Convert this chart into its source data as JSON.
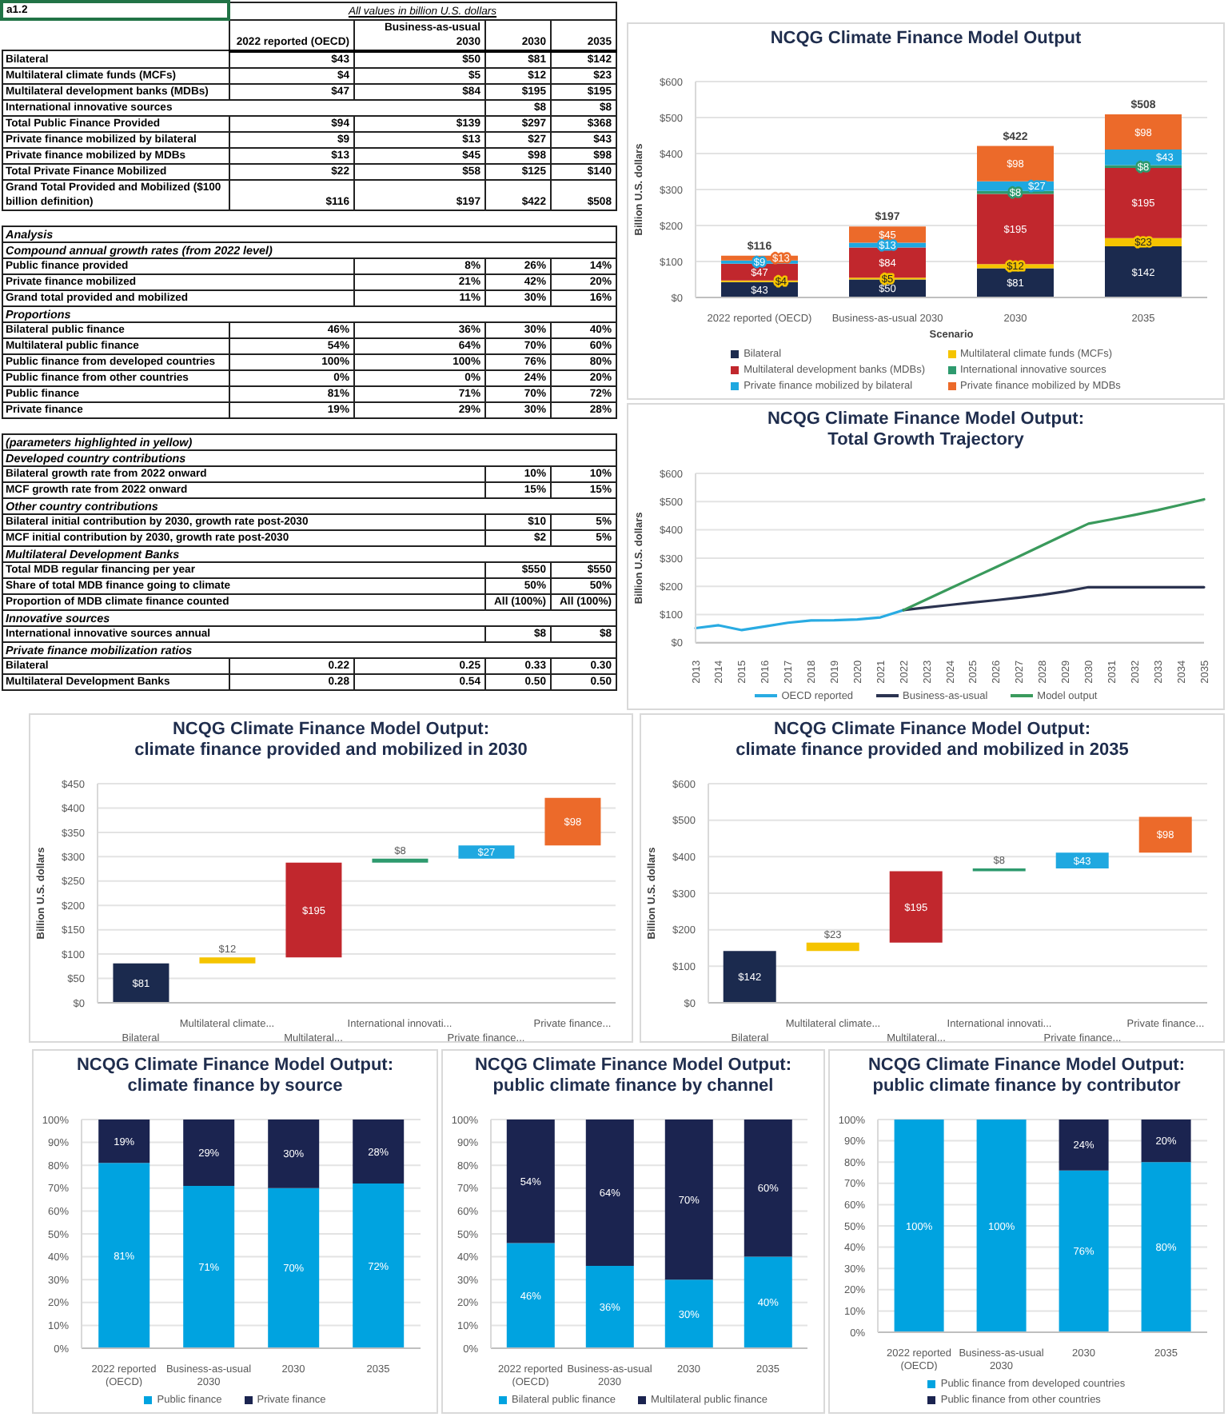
{
  "chart_data": [
    {
      "type": "other",
      "title": "All values in billion U.S. dollars",
      "annotations": [
        "a1.2"
      ],
      "categories": [
        "2022 reported (OECD)",
        "Business-as-usual 2030",
        "2030",
        "2035"
      ],
      "y_categories": [
        "Bilateral",
        "Multilateral climate funds (MCFs)",
        "Multilateral development banks (MDBs)",
        "International innovative sources",
        "Total Public Finance Provided",
        "Private finance mobilized by bilateral",
        "Private finance mobilized by MDBs",
        "Total Private Finance Mobilized",
        "Grand Total Provided and Mobilized ($100 billion definition)",
        null,
        "Analysis",
        "Compound annual growth rates (from 2022 level)",
        "Public finance provided",
        "Private finance mobilized",
        "Grand total provided and mobilized",
        "Proportions",
        "Bilateral public finance",
        "Multilateral public finance",
        "Public finance from developed countries",
        "Public finance from other countries",
        "Public finance",
        "Private finance",
        null,
        "(parameters highlighted in yellow)",
        "Developed country contributions",
        "Bilateral growth rate from 2022 onward",
        "MCF growth rate from 2022 onward",
        "Other country contributions",
        "Bilateral initial contribution by 2030, growth rate post-2030",
        "MCF initial contribution by 2030, growth rate post-2030",
        "Multilateral Development Banks",
        "Total MDB regular financing per year",
        "Share of total MDB finance going to climate",
        "Proportion of MDB climate finance counted",
        "Innovative sources",
        "International innovative sources annual",
        "Private finance mobilization ratios",
        "Bilateral",
        "Multilateral Development Banks"
      ],
      "cell_labels": [
        [
          "$43",
          "$50",
          "$81",
          "$142"
        ],
        [
          "$4",
          "$5",
          "$12",
          "$23"
        ],
        [
          "$47",
          "$84",
          "$195",
          "$195"
        ],
        [
          null,
          null,
          "$8",
          "$8"
        ],
        [
          "$94",
          "$139",
          "$297",
          "$368"
        ],
        [
          "$9",
          "$13",
          "$27",
          "$43"
        ],
        [
          "$13",
          "$45",
          "$98",
          "$98"
        ],
        [
          "$22",
          "$58",
          "$125",
          "$140"
        ],
        [
          "$116",
          "$197",
          "$422",
          "$508"
        ],
        [
          null,
          null,
          null,
          null
        ],
        [
          null,
          null,
          null,
          null
        ],
        [
          null,
          null,
          null,
          null
        ],
        [
          null,
          "8%",
          "26%",
          "14%"
        ],
        [
          null,
          "21%",
          "42%",
          "20%"
        ],
        [
          null,
          "11%",
          "30%",
          "16%"
        ],
        [
          null,
          null,
          null,
          null
        ],
        [
          "46%",
          "36%",
          "30%",
          "40%"
        ],
        [
          "54%",
          "64%",
          "70%",
          "60%"
        ],
        [
          "100%",
          "100%",
          "76%",
          "80%"
        ],
        [
          "0%",
          "0%",
          "24%",
          "20%"
        ],
        [
          "81%",
          "71%",
          "70%",
          "72%"
        ],
        [
          "19%",
          "29%",
          "30%",
          "28%"
        ],
        [
          null,
          null,
          null,
          null
        ],
        [
          null,
          null,
          null,
          null
        ],
        [
          null,
          null,
          null,
          null
        ],
        [
          null,
          null,
          "10%",
          "10%"
        ],
        [
          null,
          null,
          "15%",
          "15%"
        ],
        [
          null,
          null,
          null,
          null
        ],
        [
          null,
          null,
          "$10",
          "5%"
        ],
        [
          null,
          null,
          "$2",
          "5%"
        ],
        [
          null,
          null,
          null,
          null
        ],
        [
          null,
          null,
          "$550",
          "$550"
        ],
        [
          null,
          null,
          "50%",
          "50%"
        ],
        [
          null,
          null,
          "All (100%)",
          "All (100%)"
        ],
        [
          null,
          null,
          null,
          null
        ],
        [
          null,
          null,
          "$8",
          "$8"
        ],
        [
          null,
          null,
          null,
          null
        ],
        [
          "0.22",
          "0.25",
          "0.33",
          "0.30"
        ],
        [
          "0.28",
          "0.54",
          "0.50",
          "0.50"
        ]
      ]
    },
    {
      "type": "bar",
      "title": "NCQG Climate Finance Model Output",
      "xlabel": "Scenario",
      "ylabel": "Billion U.S. dollars",
      "categories": [
        "2022 reported (OECD)",
        "Business-as-usual 2030",
        "2030",
        "2035"
      ],
      "stacked": true,
      "series": [
        {
          "name": "Bilateral",
          "color": "#1b2a4e",
          "values": [
            43,
            50,
            81,
            142
          ],
          "value_labels": [
            "$43",
            "$50",
            "$81",
            "$142"
          ]
        },
        {
          "name": "Multilateral climate funds (MCFs)",
          "color": "#f5c400",
          "values": [
            4,
            5,
            12,
            23
          ],
          "value_labels": [
            "$4",
            "$5",
            "$12",
            "$23"
          ]
        },
        {
          "name": "Multilateral development banks (MDBs)",
          "color": "#c1272d",
          "values": [
            47,
            84,
            195,
            195
          ],
          "value_labels": [
            "$47",
            "$84",
            "$195",
            "$195"
          ]
        },
        {
          "name": "International innovative sources",
          "color": "#2e9a6e",
          "values": [
            null,
            null,
            8,
            8
          ],
          "value_labels": [
            null,
            null,
            "$8",
            "$8"
          ]
        },
        {
          "name": "Private finance mobilized by bilateral",
          "color": "#1fa8e0",
          "values": [
            9,
            13,
            27,
            43
          ],
          "value_labels": [
            "$9",
            "$13",
            "$27",
            "$43"
          ]
        },
        {
          "name": "Private finance mobilized by MDBs",
          "color": "#ec6a2a",
          "values": [
            13,
            45,
            98,
            98
          ],
          "value_labels": [
            "$13",
            "$45",
            "$98",
            "$98"
          ]
        }
      ],
      "totals": [
        "$116",
        "$197",
        "$422",
        "$508"
      ],
      "ylim": [
        0,
        600
      ],
      "yticks": [
        {
          "value": 0,
          "label": "$0"
        },
        {
          "value": 100,
          "label": "$100"
        },
        {
          "value": 200,
          "label": "$200"
        },
        {
          "value": 300,
          "label": "$300"
        },
        {
          "value": 400,
          "label": "$400"
        },
        {
          "value": 500,
          "label": "$500"
        },
        {
          "value": 600,
          "label": "$600"
        }
      ],
      "grid": "y",
      "legend": "bottom"
    },
    {
      "type": "line",
      "title": "NCQG Climate Finance Model Output:\nTotal Growth Trajectory",
      "ylabel": "Billion U.S. dollars",
      "categories": [
        "2013",
        "2014",
        "2015",
        "2016",
        "2017",
        "2018",
        "2019",
        "2020",
        "2021",
        "2022",
        "2023",
        "2024",
        "2025",
        "2026",
        "2027",
        "2028",
        "2029",
        "2030",
        "2031",
        "2032",
        "2033",
        "2034",
        "2035"
      ],
      "series": [
        {
          "name": "OECD reported",
          "color": "#29abe2",
          "values": [
            52,
            62,
            45,
            58,
            71,
            79,
            80,
            83,
            90,
            116,
            null,
            null,
            null,
            null,
            null,
            null,
            null,
            null,
            null,
            null,
            null,
            null,
            null
          ]
        },
        {
          "name": "Business-as-usual",
          "color": "#2b3350",
          "values": [
            null,
            null,
            null,
            null,
            null,
            null,
            null,
            null,
            null,
            116,
            125,
            134,
            143,
            151,
            160,
            170,
            182,
            197,
            197,
            197,
            197,
            197,
            197
          ]
        },
        {
          "name": "Model output",
          "color": "#3a9a5c",
          "values": [
            null,
            null,
            null,
            null,
            null,
            null,
            null,
            null,
            null,
            116,
            154,
            192,
            230,
            268,
            306,
            345,
            384,
            422,
            437,
            453,
            470,
            489,
            508
          ]
        }
      ],
      "ylim": [
        0,
        600
      ],
      "yticks": [
        {
          "value": 0,
          "label": "$0"
        },
        {
          "value": 100,
          "label": "$100"
        },
        {
          "value": 200,
          "label": "$200"
        },
        {
          "value": 300,
          "label": "$300"
        },
        {
          "value": 400,
          "label": "$400"
        },
        {
          "value": 500,
          "label": "$500"
        },
        {
          "value": 600,
          "label": "$600"
        }
      ],
      "grid": "y",
      "legend": "bottom",
      "marker": "none"
    },
    {
      "type": "bar",
      "title": "NCQG Climate Finance Model Output:\nclimate finance provided and mobilized in 2030",
      "ylabel": "Billion U.S. dollars",
      "categories": [
        "Bilateral",
        "Multilateral climate...",
        "Multilateral...",
        "International innovati...",
        "Private finance...",
        "Private finance..."
      ],
      "values": [
        81,
        12,
        195,
        8,
        27,
        98
      ],
      "base": [
        0,
        81,
        93,
        288,
        296,
        323
      ],
      "colors": [
        "#1b2a4e",
        "#f5c400",
        "#c1272d",
        "#2e9a6e",
        "#1fa8e0",
        "#ec6a2a"
      ],
      "value_labels": [
        "$81",
        "$12",
        "$195",
        "$8",
        "$27",
        "$98"
      ],
      "ylim": [
        0,
        450
      ],
      "yticks": [
        {
          "value": 0,
          "label": "$0"
        },
        {
          "value": 50,
          "label": "$50"
        },
        {
          "value": 100,
          "label": "$100"
        },
        {
          "value": 150,
          "label": "$150"
        },
        {
          "value": 200,
          "label": "$200"
        },
        {
          "value": 250,
          "label": "$250"
        },
        {
          "value": 300,
          "label": "$300"
        },
        {
          "value": 350,
          "label": "$350"
        },
        {
          "value": 400,
          "label": "$400"
        },
        {
          "value": 450,
          "label": "$450"
        }
      ],
      "grid": "y"
    },
    {
      "type": "bar",
      "title": "NCQG Climate Finance Model Output:\nclimate finance provided and mobilized in 2035",
      "ylabel": "Billion U.S. dollars",
      "categories": [
        "Bilateral",
        "Multilateral climate...",
        "Multilateral...",
        "International innovati...",
        "Private finance...",
        "Private finance..."
      ],
      "values": [
        142,
        23,
        195,
        8,
        43,
        98
      ],
      "base": [
        0,
        142,
        165,
        360,
        368,
        411
      ],
      "colors": [
        "#1b2a4e",
        "#f5c400",
        "#c1272d",
        "#2e9a6e",
        "#1fa8e0",
        "#ec6a2a"
      ],
      "value_labels": [
        "$142",
        "$23",
        "$195",
        "$8",
        "$43",
        "$98"
      ],
      "ylim": [
        0,
        600
      ],
      "yticks": [
        {
          "value": 0,
          "label": "$0"
        },
        {
          "value": 100,
          "label": "$100"
        },
        {
          "value": 200,
          "label": "$200"
        },
        {
          "value": 300,
          "label": "$300"
        },
        {
          "value": 400,
          "label": "$400"
        },
        {
          "value": 500,
          "label": "$500"
        },
        {
          "value": 600,
          "label": "$600"
        }
      ],
      "grid": "y"
    },
    {
      "type": "bar",
      "title": "NCQG Climate Finance Model Output:\nclimate finance by source",
      "categories": [
        "2022 reported (OECD)",
        "Business-as-usual 2030",
        "2030",
        "2035"
      ],
      "stacked": true,
      "series": [
        {
          "name": "Public finance",
          "color": "#00a3e0",
          "values": [
            81,
            71,
            70,
            72
          ],
          "value_labels": [
            "81%",
            "71%",
            "70%",
            "72%"
          ]
        },
        {
          "name": "Private finance",
          "color": "#1b2450",
          "values": [
            19,
            29,
            30,
            28
          ],
          "value_labels": [
            "19%",
            "29%",
            "30%",
            "28%"
          ]
        }
      ],
      "ylim": [
        0,
        100
      ],
      "yticks": [
        {
          "value": 0,
          "label": "0%"
        },
        {
          "value": 10,
          "label": "10%"
        },
        {
          "value": 20,
          "label": "20%"
        },
        {
          "value": 30,
          "label": "30%"
        },
        {
          "value": 40,
          "label": "40%"
        },
        {
          "value": 50,
          "label": "50%"
        },
        {
          "value": 60,
          "label": "60%"
        },
        {
          "value": 70,
          "label": "70%"
        },
        {
          "value": 80,
          "label": "80%"
        },
        {
          "value": 90,
          "label": "90%"
        },
        {
          "value": 100,
          "label": "100%"
        }
      ],
      "grid": "y",
      "legend": "bottom"
    },
    {
      "type": "bar",
      "title": "NCQG Climate Finance Model Output:\npublic climate finance by channel",
      "categories": [
        "2022 reported (OECD)",
        "Business-as-usual 2030",
        "2030",
        "2035"
      ],
      "stacked": true,
      "series": [
        {
          "name": "Bilateral public finance",
          "color": "#00a3e0",
          "values": [
            46,
            36,
            30,
            40
          ],
          "value_labels": [
            "46%",
            "36%",
            "30%",
            "40%"
          ]
        },
        {
          "name": "Multilateral public finance",
          "color": "#1b2450",
          "values": [
            54,
            64,
            70,
            60
          ],
          "value_labels": [
            "54%",
            "64%",
            "70%",
            "60%"
          ]
        }
      ],
      "ylim": [
        0,
        100
      ],
      "yticks": [
        {
          "value": 0,
          "label": "0%"
        },
        {
          "value": 10,
          "label": "10%"
        },
        {
          "value": 20,
          "label": "20%"
        },
        {
          "value": 30,
          "label": "30%"
        },
        {
          "value": 40,
          "label": "40%"
        },
        {
          "value": 50,
          "label": "50%"
        },
        {
          "value": 60,
          "label": "60%"
        },
        {
          "value": 70,
          "label": "70%"
        },
        {
          "value": 80,
          "label": "80%"
        },
        {
          "value": 90,
          "label": "90%"
        },
        {
          "value": 100,
          "label": "100%"
        }
      ],
      "grid": "y",
      "legend": "bottom"
    },
    {
      "type": "bar",
      "title": "NCQG Climate Finance Model Output:\npublic climate finance by contributor",
      "categories": [
        "2022 reported (OECD)",
        "Business-as-usual 2030",
        "2030",
        "2035"
      ],
      "stacked": true,
      "series": [
        {
          "name": "Public finance from developed countries",
          "color": "#00a3e0",
          "values": [
            100,
            100,
            76,
            80
          ],
          "value_labels": [
            "100%",
            "100%",
            "76%",
            "80%"
          ]
        },
        {
          "name": "Public finance from other countries",
          "color": "#1b2450",
          "values": [
            0,
            0,
            24,
            20
          ],
          "value_labels": [
            null,
            null,
            "24%",
            "20%"
          ]
        }
      ],
      "ylim": [
        0,
        100
      ],
      "yticks": [
        {
          "value": 0,
          "label": "0%"
        },
        {
          "value": 10,
          "label": "10%"
        },
        {
          "value": 20,
          "label": "20%"
        },
        {
          "value": 30,
          "label": "30%"
        },
        {
          "value": 40,
          "label": "40%"
        },
        {
          "value": 50,
          "label": "50%"
        },
        {
          "value": 60,
          "label": "60%"
        },
        {
          "value": 70,
          "label": "70%"
        },
        {
          "value": 80,
          "label": "80%"
        },
        {
          "value": 90,
          "label": "90%"
        },
        {
          "value": 100,
          "label": "100%"
        }
      ],
      "grid": "y",
      "legend": "bottom"
    }
  ]
}
